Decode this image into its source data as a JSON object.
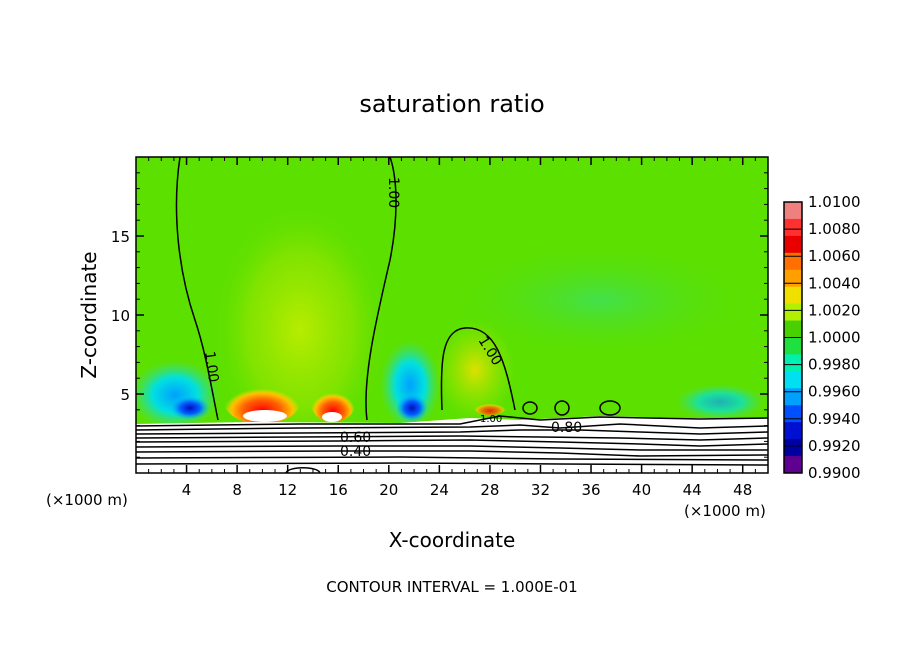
{
  "chart_data": {
    "type": "heatmap",
    "title": "saturation ratio",
    "xlabel": "X-coordinate",
    "ylabel": "Z-coordinate",
    "x_unit": "(×1000 m)",
    "z_unit": "(×1000 m)",
    "xlim": [
      0,
      50
    ],
    "ylim": [
      0,
      20
    ],
    "x_ticks": [
      4,
      8,
      12,
      16,
      20,
      24,
      28,
      32,
      36,
      40,
      44,
      48
    ],
    "x_tick_labels": [
      "4",
      "8",
      "12",
      "16",
      "20",
      "24",
      "28",
      "32",
      "36",
      "40",
      "44",
      "48"
    ],
    "y_ticks": [
      5,
      10,
      15
    ],
    "y_tick_labels": [
      "5",
      "10",
      "15"
    ],
    "colorbar": {
      "range": [
        0.99,
        1.01
      ],
      "labels": [
        "1.0100",
        "1.0080",
        "1.0060",
        "1.0040",
        "1.0020",
        "1.0000",
        "0.9980",
        "0.9960",
        "0.9940",
        "0.9920",
        "0.9900"
      ],
      "colors": [
        "#f08080",
        "#ff3030",
        "#e80000",
        "#ff7000",
        "#ffa000",
        "#f0e000",
        "#b0f000",
        "#48d000",
        "#20e040",
        "#00f0b0",
        "#00e0f0",
        "#00a0ff",
        "#0050ff",
        "#0010d0",
        "#0000a0",
        "#600090"
      ]
    },
    "contour_labels": [
      "1.00",
      "1.00",
      "1.00",
      "1.00",
      "0.80",
      "0.60",
      "0.40"
    ],
    "footer": "CONTOUR INTERVAL = 1.000E-01",
    "colors": {
      "background_field": "#5ce000",
      "max_field": "#fff000",
      "min_field": "#0030ff",
      "lower_region": "#ffffff"
    }
  }
}
